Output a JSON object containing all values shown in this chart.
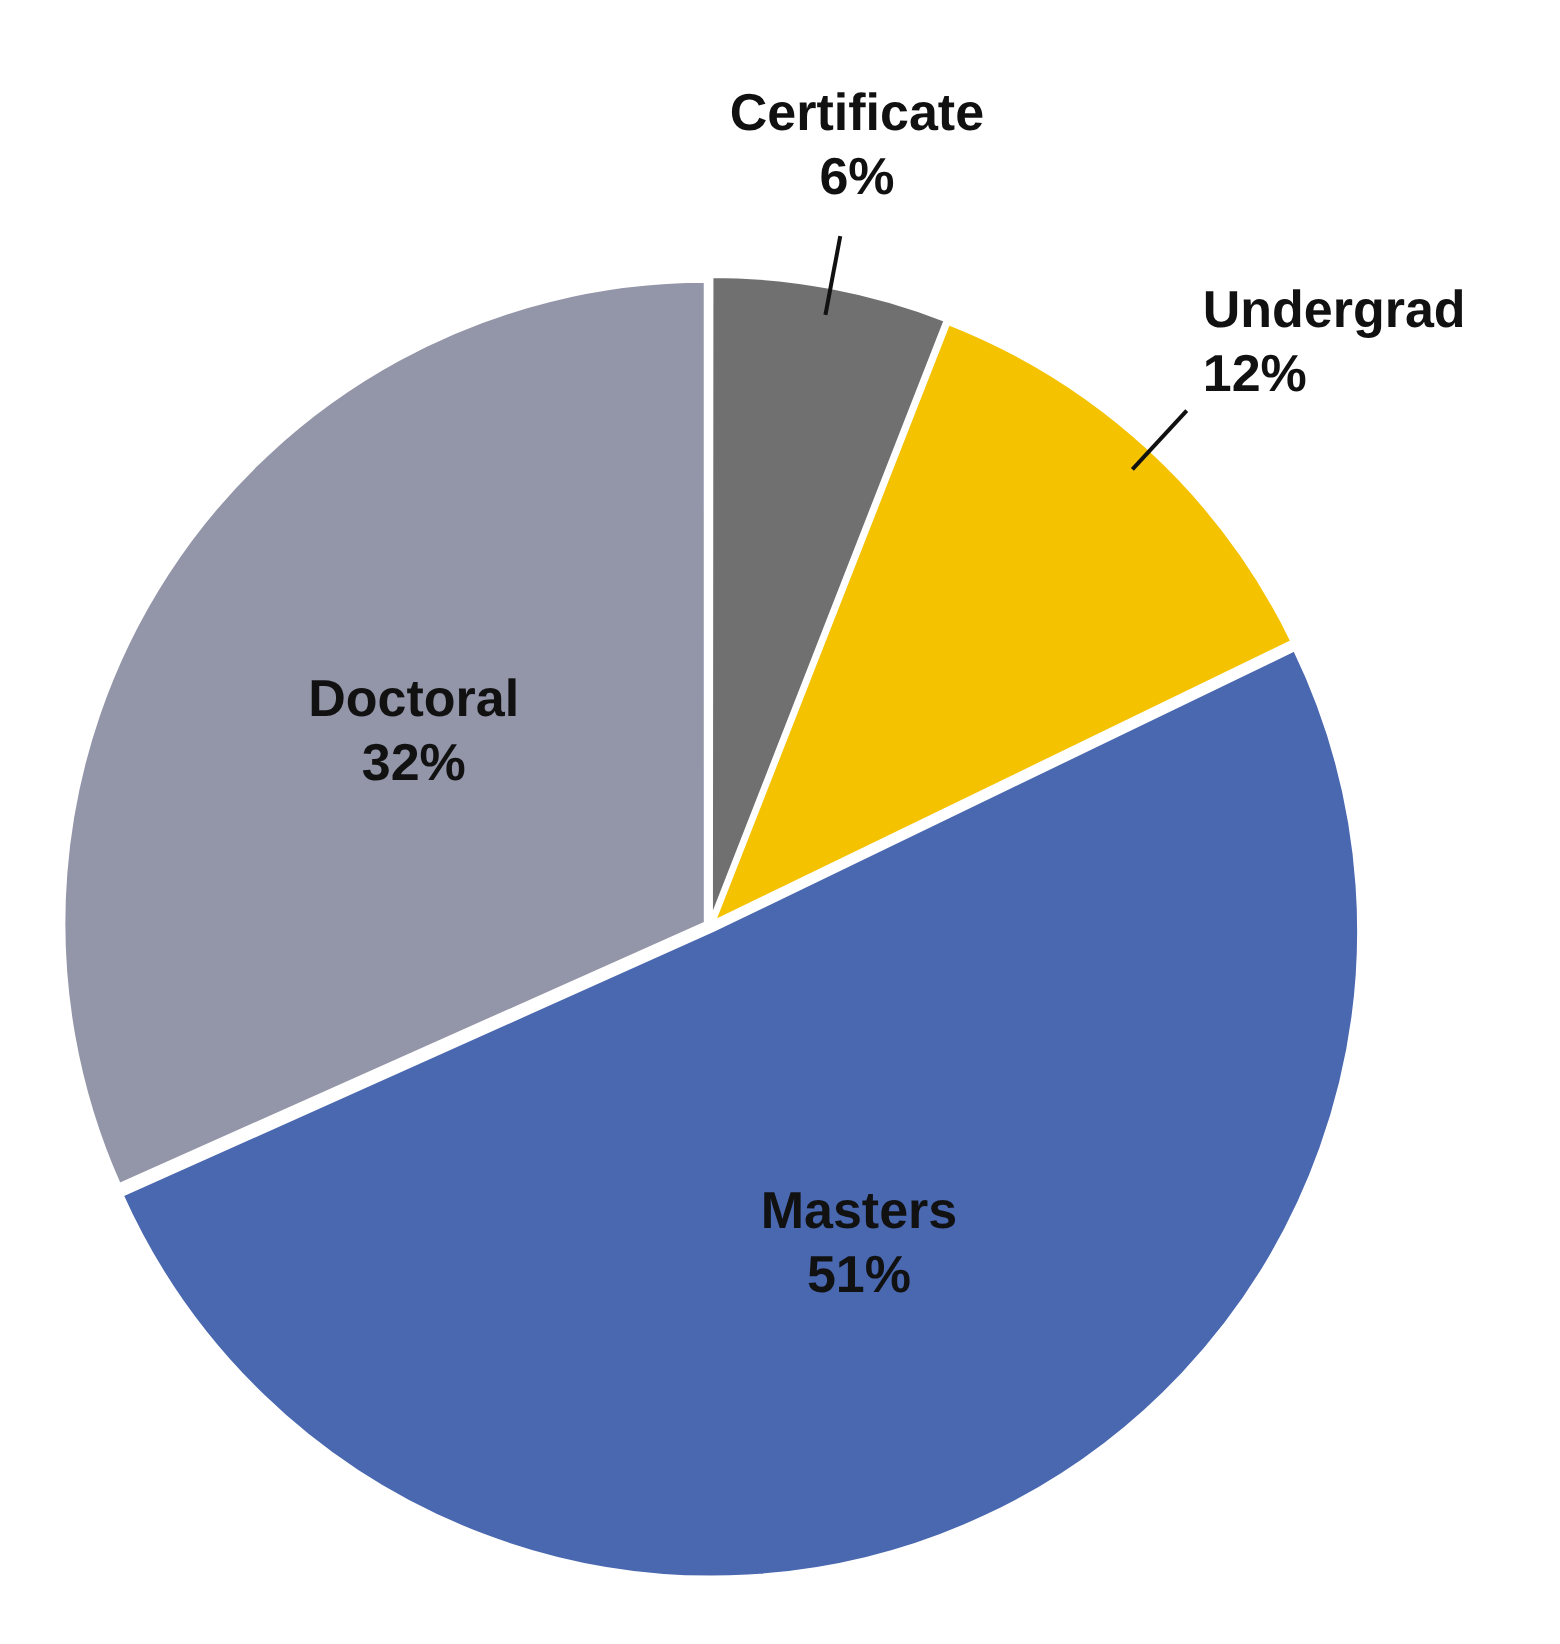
{
  "chart_data": {
    "type": "pie",
    "categories": [
      "Certificate",
      "Undergrad",
      "Masters",
      "Doctoral"
    ],
    "values": [
      6,
      12,
      51,
      32
    ],
    "value_labels": [
      "6%",
      "12%",
      "51%",
      "32%"
    ],
    "colors": [
      "#707070",
      "#f5c200",
      "#4a68b0",
      "#9395a8"
    ],
    "legend": false
  }
}
